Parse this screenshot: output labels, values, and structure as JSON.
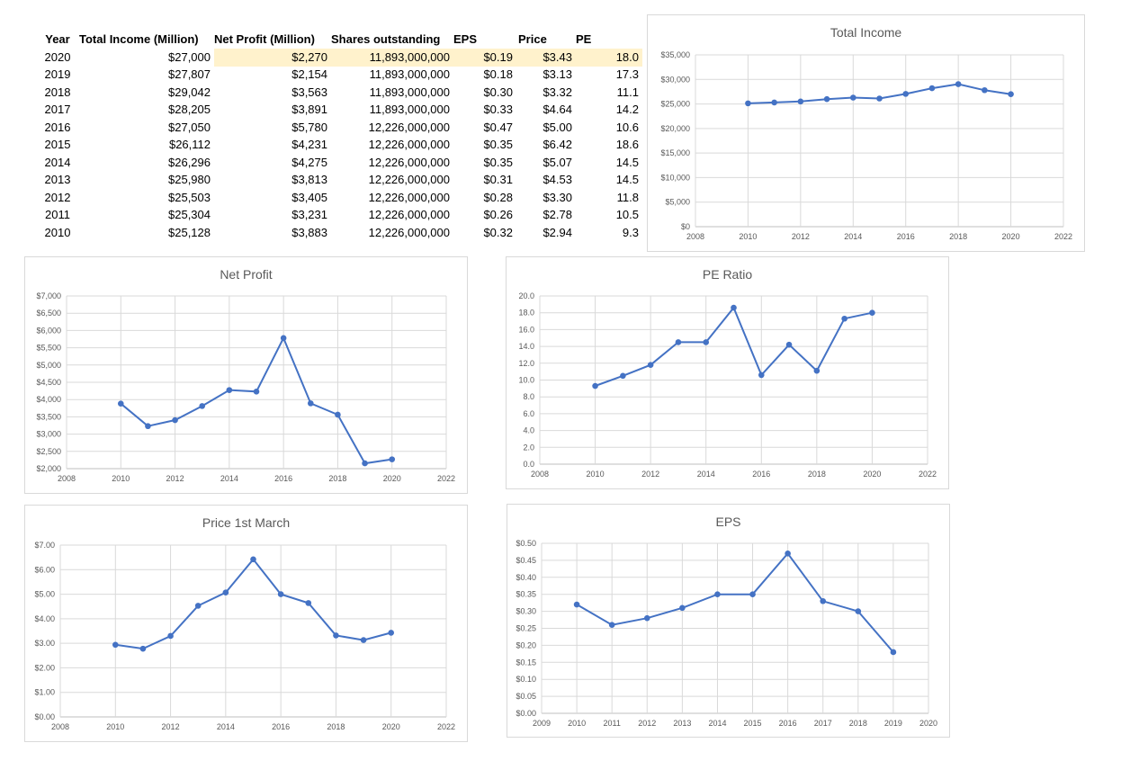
{
  "table": {
    "headers": [
      "Year",
      "Total Income (Million)",
      "Net Profit (Million)",
      "Shares outstanding",
      "EPS",
      "Price",
      "PE"
    ],
    "rows": [
      [
        "2020",
        "$27,000",
        "$2,270",
        "11,893,000,000",
        "$0.19",
        "$3.43",
        "18.0"
      ],
      [
        "2019",
        "$27,807",
        "$2,154",
        "11,893,000,000",
        "$0.18",
        "$3.13",
        "17.3"
      ],
      [
        "2018",
        "$29,042",
        "$3,563",
        "11,893,000,000",
        "$0.30",
        "$3.32",
        "11.1"
      ],
      [
        "2017",
        "$28,205",
        "$3,891",
        "11,893,000,000",
        "$0.33",
        "$4.64",
        "14.2"
      ],
      [
        "2016",
        "$27,050",
        "$5,780",
        "12,226,000,000",
        "$0.47",
        "$5.00",
        "10.6"
      ],
      [
        "2015",
        "$26,112",
        "$4,231",
        "12,226,000,000",
        "$0.35",
        "$6.42",
        "18.6"
      ],
      [
        "2014",
        "$26,296",
        "$4,275",
        "12,226,000,000",
        "$0.35",
        "$5.07",
        "14.5"
      ],
      [
        "2013",
        "$25,980",
        "$3,813",
        "12,226,000,000",
        "$0.31",
        "$4.53",
        "14.5"
      ],
      [
        "2012",
        "$25,503",
        "$3,405",
        "12,226,000,000",
        "$0.28",
        "$3.30",
        "11.8"
      ],
      [
        "2011",
        "$25,304",
        "$3,231",
        "12,226,000,000",
        "$0.26",
        "$2.78",
        "10.5"
      ],
      [
        "2010",
        "$25,128",
        "$3,883",
        "12,226,000,000",
        "$0.32",
        "$2.94",
        "9.3"
      ]
    ],
    "highlight_color": "#fff2cc"
  },
  "colors": {
    "series": "#4472c4",
    "grid": "#d9d9d9",
    "text": "#595959"
  },
  "chart_data": [
    {
      "id": "total-income",
      "type": "scatter",
      "title": "Total Income",
      "x": [
        2010,
        2011,
        2012,
        2013,
        2014,
        2015,
        2016,
        2017,
        2018,
        2019,
        2020
      ],
      "y": [
        25128,
        25304,
        25503,
        25980,
        26296,
        26112,
        27050,
        28205,
        29042,
        27807,
        27000
      ],
      "xlim": [
        2008,
        2022
      ],
      "ylim": [
        0,
        35000
      ],
      "xticks": [
        2008,
        2010,
        2012,
        2014,
        2016,
        2018,
        2020,
        2022
      ],
      "yticks": [
        0,
        5000,
        10000,
        15000,
        20000,
        25000,
        30000,
        35000
      ],
      "ytick_labels": [
        "$0",
        "$5,000",
        "$10,000",
        "$15,000",
        "$20,000",
        "$25,000",
        "$30,000",
        "$35,000"
      ],
      "grid": true
    },
    {
      "id": "net-profit",
      "type": "scatter",
      "title": "Net Profit",
      "x": [
        2010,
        2011,
        2012,
        2013,
        2014,
        2015,
        2016,
        2017,
        2018,
        2019,
        2020
      ],
      "y": [
        3883,
        3231,
        3405,
        3813,
        4275,
        4231,
        5780,
        3891,
        3563,
        2154,
        2270
      ],
      "xlim": [
        2008,
        2022
      ],
      "ylim": [
        2000,
        7000
      ],
      "xticks": [
        2008,
        2010,
        2012,
        2014,
        2016,
        2018,
        2020,
        2022
      ],
      "yticks": [
        2000,
        2500,
        3000,
        3500,
        4000,
        4500,
        5000,
        5500,
        6000,
        6500,
        7000
      ],
      "ytick_labels": [
        "$2,000",
        "$2,500",
        "$3,000",
        "$3,500",
        "$4,000",
        "$4,500",
        "$5,000",
        "$5,500",
        "$6,000",
        "$6,500",
        "$7,000"
      ],
      "grid": true
    },
    {
      "id": "pe-ratio",
      "type": "scatter",
      "title": "PE Ratio",
      "x": [
        2010,
        2011,
        2012,
        2013,
        2014,
        2015,
        2016,
        2017,
        2018,
        2019,
        2020
      ],
      "y": [
        9.3,
        10.5,
        11.8,
        14.5,
        14.5,
        18.6,
        10.6,
        14.2,
        11.1,
        17.3,
        18.0
      ],
      "xlim": [
        2008,
        2022
      ],
      "ylim": [
        0,
        20
      ],
      "xticks": [
        2008,
        2010,
        2012,
        2014,
        2016,
        2018,
        2020,
        2022
      ],
      "yticks": [
        0,
        2,
        4,
        6,
        8,
        10,
        12,
        14,
        16,
        18,
        20
      ],
      "ytick_labels": [
        "0.0",
        "2.0",
        "4.0",
        "6.0",
        "8.0",
        "10.0",
        "12.0",
        "14.0",
        "16.0",
        "18.0",
        "20.0"
      ],
      "grid": true
    },
    {
      "id": "price",
      "type": "scatter",
      "title": "Price 1st March",
      "x": [
        2010,
        2011,
        2012,
        2013,
        2014,
        2015,
        2016,
        2017,
        2018,
        2019,
        2020
      ],
      "y": [
        2.94,
        2.78,
        3.3,
        4.53,
        5.07,
        6.42,
        5.0,
        4.64,
        3.32,
        3.13,
        3.43
      ],
      "xlim": [
        2008,
        2022
      ],
      "ylim": [
        0,
        7
      ],
      "xticks": [
        2008,
        2010,
        2012,
        2014,
        2016,
        2018,
        2020,
        2022
      ],
      "yticks": [
        0,
        1,
        2,
        3,
        4,
        5,
        6,
        7
      ],
      "ytick_labels": [
        "$0.00",
        "$1.00",
        "$2.00",
        "$3.00",
        "$4.00",
        "$5.00",
        "$6.00",
        "$7.00"
      ],
      "grid": true
    },
    {
      "id": "eps",
      "type": "scatter",
      "title": "EPS",
      "x": [
        2010,
        2011,
        2012,
        2013,
        2014,
        2015,
        2016,
        2017,
        2018,
        2019
      ],
      "y": [
        0.32,
        0.26,
        0.28,
        0.31,
        0.35,
        0.35,
        0.47,
        0.33,
        0.3,
        0.18
      ],
      "xlim": [
        2009,
        2020
      ],
      "ylim": [
        0,
        0.5
      ],
      "xticks": [
        2009,
        2010,
        2011,
        2012,
        2013,
        2014,
        2015,
        2016,
        2017,
        2018,
        2019,
        2020
      ],
      "yticks": [
        0,
        0.05,
        0.1,
        0.15,
        0.2,
        0.25,
        0.3,
        0.35,
        0.4,
        0.45,
        0.5
      ],
      "ytick_labels": [
        "$0.00",
        "$0.05",
        "$0.10",
        "$0.15",
        "$0.20",
        "$0.25",
        "$0.30",
        "$0.35",
        "$0.40",
        "$0.45",
        "$0.50"
      ],
      "grid": true
    }
  ]
}
